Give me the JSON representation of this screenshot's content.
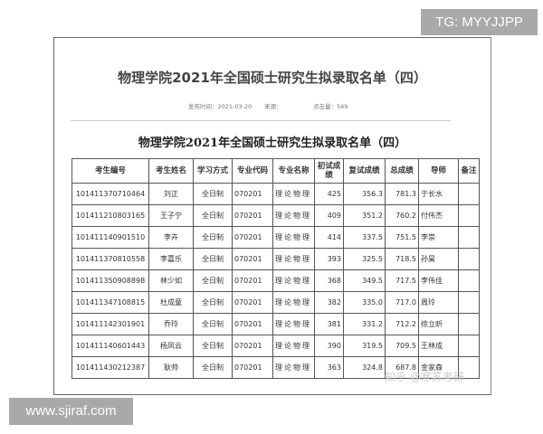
{
  "overlay": {
    "tg_label": "TG: MYYJJPP",
    "site_label": "www.sjiraf.com"
  },
  "article": {
    "title": "物理学院2021年全国硕士研究生拟录取名单（四）",
    "publish_time": "发布时间：2021-03-20",
    "source": "来源：",
    "views": "点击量：569",
    "table_title": "物理学院2021年全国硕士研究生拟录取名单（四）",
    "watermark": "知乎 @寒苏考研"
  },
  "table": {
    "headers": [
      "考生编号",
      "考生姓名",
      "学习方式",
      "专业代码",
      "专业名称",
      "初试成绩",
      "复试成绩",
      "总成绩",
      "导师",
      "备注"
    ],
    "rows": [
      [
        "101411370710464",
        "刘正",
        "全日制",
        "070201",
        "理论物理",
        "425",
        "356.3",
        "781.3",
        "于长水",
        ""
      ],
      [
        "101411210803165",
        "王子宁",
        "全日制",
        "070201",
        "理论物理",
        "409",
        "351.2",
        "760.2",
        "付伟杰",
        ""
      ],
      [
        "101411140901510",
        "李卉",
        "全日制",
        "070201",
        "理论物理",
        "414",
        "337.5",
        "751.5",
        "李崇",
        ""
      ],
      [
        "101411370810558",
        "李嘉乐",
        "全日制",
        "070201",
        "理论物理",
        "393",
        "325.5",
        "718.5",
        "孙昊",
        ""
      ],
      [
        "101411350908898",
        "林少如",
        "全日制",
        "070201",
        "理论物理",
        "368",
        "349.5",
        "717.5",
        "李伟佳",
        ""
      ],
      [
        "101411347108815",
        "杜成童",
        "全日制",
        "070201",
        "理论物理",
        "382",
        "335.0",
        "717.0",
        "周玲",
        ""
      ],
      [
        "101411142301901",
        "乔玲",
        "全日制",
        "070201",
        "理论物理",
        "381",
        "331.2",
        "712.2",
        "徐立昕",
        ""
      ],
      [
        "101411140601443",
        "杨凤云",
        "全日制",
        "070201",
        "理论物理",
        "390",
        "319.5",
        "709.5",
        "王林成",
        ""
      ],
      [
        "101411430212387",
        "耿帅",
        "全日制",
        "070201",
        "理论物理",
        "363",
        "324.8",
        "687.8",
        "金家森",
        ""
      ]
    ]
  }
}
